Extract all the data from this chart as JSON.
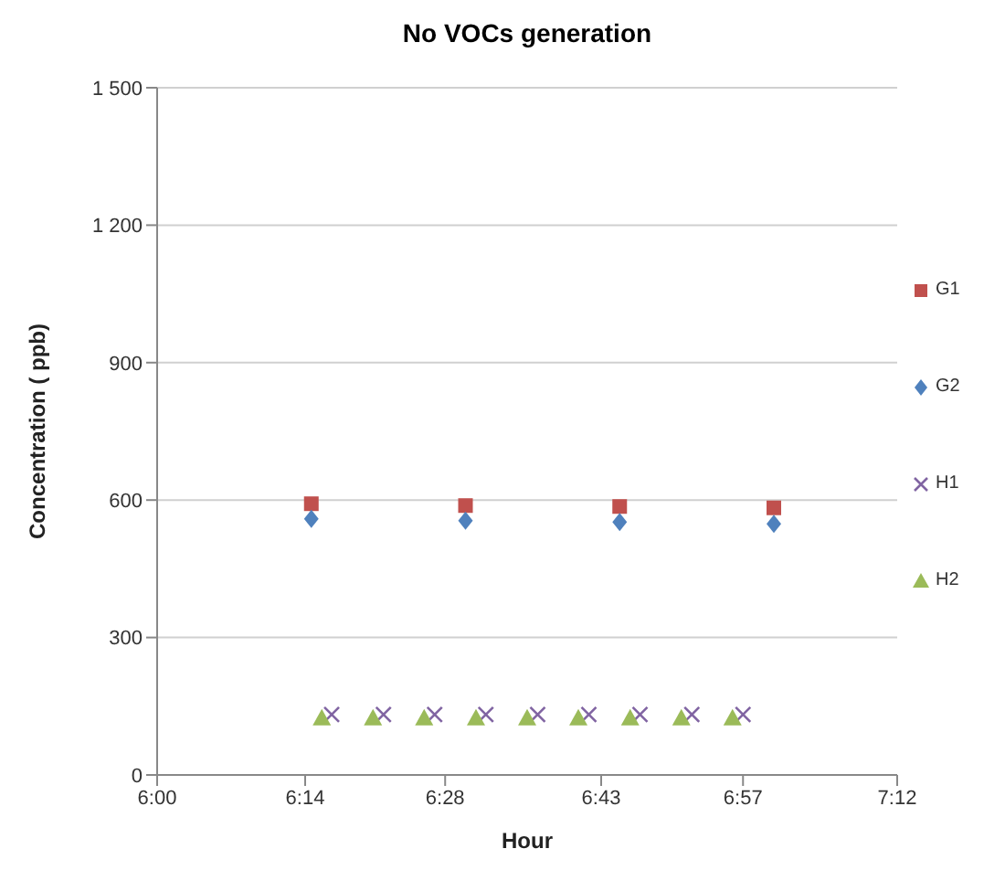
{
  "chart_data": {
    "type": "scatter",
    "title": "No VOCs generation",
    "xlabel": "Hour",
    "ylabel": "Concentration ( ppb)",
    "xlim": [
      6,
      7.2
    ],
    "xticks": [
      {
        "value": 6,
        "label": "6:00"
      },
      {
        "value": 6.24,
        "label": "6:14"
      },
      {
        "value": 6.467,
        "label": "6:28"
      },
      {
        "value": 6.72,
        "label": "6:43"
      },
      {
        "value": 6.95,
        "label": "6:57"
      },
      {
        "value": 7.2,
        "label": "7:12"
      }
    ],
    "ylim": [
      0,
      1500
    ],
    "yticks": [
      0,
      300,
      600,
      900,
      {
        "value": 1200,
        "label": "1 200"
      },
      {
        "value": 1500,
        "label": "1 500"
      }
    ],
    "grid": "y",
    "legend": "right",
    "series": [
      {
        "name": "G1",
        "color": "#c0504d",
        "marker": "square",
        "x": [
          6.25,
          6.5,
          6.75,
          7.0
        ],
        "values": [
          592,
          588,
          586,
          583
        ]
      },
      {
        "name": "G2",
        "color": "#4f81bd",
        "marker": "diamond",
        "x": [
          6.25,
          6.5,
          6.75,
          7.0
        ],
        "values": [
          559,
          555,
          552,
          548
        ]
      },
      {
        "name": "H1",
        "color": "#8064a2",
        "marker": "cross",
        "x": [
          6.283,
          6.367,
          6.45,
          6.533,
          6.617,
          6.7,
          6.783,
          6.867,
          6.95
        ],
        "values": [
          132,
          132,
          132,
          132,
          132,
          132,
          132,
          132,
          132
        ]
      },
      {
        "name": "H2",
        "color": "#9bbb59",
        "marker": "triangle",
        "x": [
          6.267,
          6.35,
          6.433,
          6.517,
          6.6,
          6.683,
          6.767,
          6.85,
          6.933
        ],
        "values": [
          124,
          124,
          124,
          124,
          124,
          124,
          124,
          124,
          124
        ]
      }
    ]
  }
}
